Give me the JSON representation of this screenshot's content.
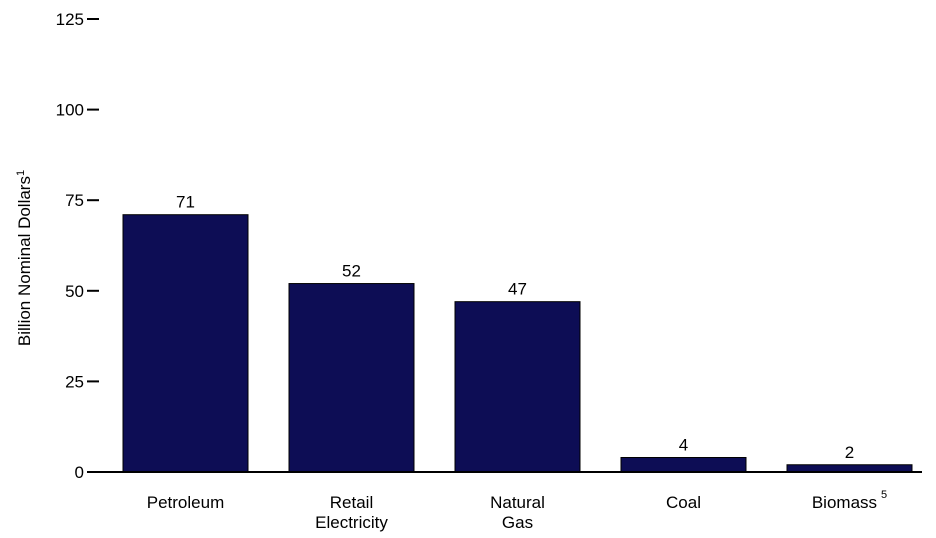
{
  "chart_data": {
    "type": "bar",
    "title": "",
    "xlabel": "",
    "ylabel": "Billion Nominal Dollars",
    "ylabel_sup": "1",
    "ylim": [
      0,
      125
    ],
    "yticks": [
      0,
      25,
      50,
      75,
      100,
      125
    ],
    "ytick_labels": [
      "0",
      "25",
      "50",
      "75",
      "100",
      "125"
    ],
    "grid": false,
    "legend": "none",
    "bar_color": "#0d0d55",
    "categories": [
      {
        "lines": [
          "Petroleum"
        ],
        "sup": ""
      },
      {
        "lines": [
          "Retail",
          "Electricity"
        ],
        "sup": ""
      },
      {
        "lines": [
          "Natural",
          "Gas"
        ],
        "sup": ""
      },
      {
        "lines": [
          "Coal"
        ],
        "sup": ""
      },
      {
        "lines": [
          "Biomass"
        ],
        "sup": "5"
      }
    ],
    "values": [
      71,
      52,
      47,
      4,
      2
    ],
    "data_labels": [
      "71",
      "52",
      "47",
      "4",
      "2"
    ]
  }
}
